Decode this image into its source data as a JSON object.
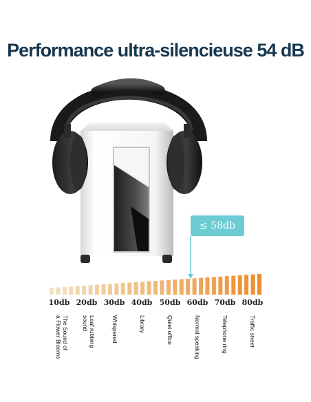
{
  "title": "Performance ultra-silencieuse 54 dB",
  "callout_label": "≤ 58db",
  "callout_color": "#6dcbd3",
  "accent_color": "#17384f",
  "meter_start_color": "#f3e2c4",
  "meter_end_color": "#ee8d2e",
  "levels": [
    {
      "db": "10db",
      "desc": "The Sound of\na Flower Blooms"
    },
    {
      "db": "20db",
      "desc": "Leaf rubbing\nsound"
    },
    {
      "db": "30db",
      "desc": "Whispered"
    },
    {
      "db": "40db",
      "desc": "Library"
    },
    {
      "db": "50db",
      "desc": "Quiet office"
    },
    {
      "db": "60db",
      "desc": "Normal speaking"
    },
    {
      "db": "70db",
      "desc": "Telephone ring"
    },
    {
      "db": "80db",
      "desc": "Traffic street"
    }
  ]
}
